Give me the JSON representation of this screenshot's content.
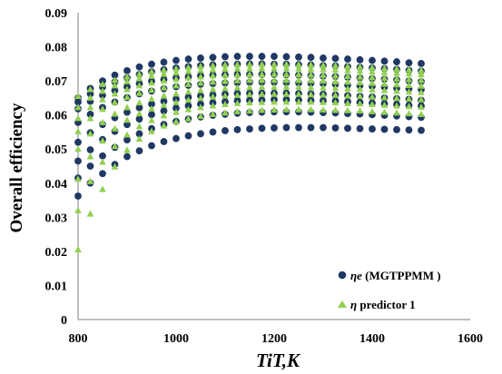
{
  "chart_data": {
    "type": "scatter",
    "xlabel": "TiT,K",
    "ylabel": "Overall efficiency",
    "xlim": [
      800,
      1600
    ],
    "ylim": [
      0,
      0.09
    ],
    "x_ticks": [
      "800",
      "1000",
      "1200",
      "1400",
      "1600"
    ],
    "y_ticks": [
      "0",
      "0.01",
      "0.02",
      "0.03",
      "0.04",
      "0.05",
      "0.06",
      "0.07",
      "0.08",
      "0.09"
    ],
    "grid": false,
    "legend_position": "bottom-right",
    "x": [
      800,
      825,
      850,
      875,
      900,
      925,
      950,
      975,
      1000,
      1025,
      1050,
      1075,
      1100,
      1125,
      1150,
      1175,
      1200,
      1225,
      1250,
      1275,
      1300,
      1325,
      1350,
      1375,
      1400,
      1425,
      1450,
      1475,
      1500
    ],
    "series": [
      {
        "name": "ηe (MGTPPMM )",
        "name_prefix": "ηe",
        "name_suffix": " (MGTPPMM )",
        "color": "#1f3864",
        "marker": "circle",
        "curves": [
          [
            0.0362,
            0.04,
            0.0428,
            0.0455,
            0.0478,
            0.0495,
            0.051,
            0.0522,
            0.0531,
            0.0539,
            0.0545,
            0.055,
            0.0554,
            0.0557,
            0.0559,
            0.0561,
            0.0562,
            0.0563,
            0.0563,
            0.0563,
            0.0563,
            0.0562,
            0.0561,
            0.056,
            0.0559,
            0.0558,
            0.0557,
            0.0556,
            0.0555
          ],
          [
            0.0415,
            0.045,
            0.048,
            0.0505,
            0.0527,
            0.0545,
            0.056,
            0.0572,
            0.0581,
            0.0588,
            0.0594,
            0.0599,
            0.0602,
            0.0605,
            0.0607,
            0.0608,
            0.0609,
            0.0609,
            0.0609,
            0.0608,
            0.0607,
            0.0606,
            0.0604,
            0.0603,
            0.0601,
            0.0599,
            0.0597,
            0.0595,
            0.0593
          ],
          [
            0.0465,
            0.0498,
            0.0528,
            0.0552,
            0.0572,
            0.0588,
            0.0601,
            0.0612,
            0.062,
            0.0627,
            0.0632,
            0.0636,
            0.0639,
            0.0642,
            0.0643,
            0.0644,
            0.0645,
            0.0645,
            0.0644,
            0.0643,
            0.0642,
            0.0641,
            0.0639,
            0.0637,
            0.0635,
            0.0633,
            0.0631,
            0.0628,
            0.0626
          ],
          [
            0.052,
            0.0548,
            0.0572,
            0.0592,
            0.0608,
            0.0621,
            0.0632,
            0.064,
            0.0647,
            0.0652,
            0.0656,
            0.0659,
            0.0661,
            0.0663,
            0.0664,
            0.0664,
            0.0664,
            0.0664,
            0.0663,
            0.0662,
            0.0661,
            0.0659,
            0.0657,
            0.0655,
            0.0653,
            0.065,
            0.0648,
            0.0646,
            0.0643
          ],
          [
            0.0578,
            0.0602,
            0.0622,
            0.0638,
            0.0651,
            0.0662,
            0.067,
            0.0677,
            0.0683,
            0.0687,
            0.069,
            0.0692,
            0.0694,
            0.0695,
            0.0696,
            0.0696,
            0.0696,
            0.0695,
            0.0694,
            0.0693,
            0.0692,
            0.069,
            0.0688,
            0.0686,
            0.0684,
            0.0682,
            0.0679,
            0.0677,
            0.0675
          ],
          [
            0.0618,
            0.064,
            0.0658,
            0.0672,
            0.0683,
            0.0692,
            0.0699,
            0.0704,
            0.0709,
            0.0712,
            0.0715,
            0.0717,
            0.0718,
            0.0719,
            0.0719,
            0.0719,
            0.0719,
            0.0718,
            0.0717,
            0.0716,
            0.0714,
            0.0713,
            0.0711,
            0.0709,
            0.0707,
            0.0705,
            0.0703,
            0.07,
            0.0698
          ],
          [
            0.0638,
            0.0662,
            0.0682,
            0.0697,
            0.0709,
            0.0719,
            0.0727,
            0.0733,
            0.0738,
            0.0742,
            0.0745,
            0.0747,
            0.0748,
            0.0749,
            0.075,
            0.075,
            0.0749,
            0.0749,
            0.0748,
            0.0747,
            0.0745,
            0.0744,
            0.0742,
            0.074,
            0.0738,
            0.0736,
            0.0734,
            0.0731,
            0.0729
          ],
          [
            0.065,
            0.0678,
            0.07,
            0.0717,
            0.073,
            0.0741,
            0.0749,
            0.0755,
            0.076,
            0.0764,
            0.0767,
            0.0769,
            0.0771,
            0.0772,
            0.0772,
            0.0772,
            0.0772,
            0.0771,
            0.077,
            0.0769,
            0.0767,
            0.0766,
            0.0764,
            0.0762,
            0.076,
            0.0758,
            0.0756,
            0.0753,
            0.0751
          ]
        ]
      },
      {
        "name": "η predictor 1",
        "name_prefix": "η",
        "name_suffix": " predictor 1",
        "color": "#92d050",
        "marker": "triangle",
        "curves": [
          [
            0.0205,
            0.031,
            0.0382,
            0.0448,
            0.0497,
            0.053,
            0.0552,
            0.0568,
            0.058,
            0.0589,
            0.0596,
            0.0602,
            0.0606,
            0.061,
            0.0612,
            0.0614,
            0.0615,
            0.0616,
            0.0616,
            0.0616,
            0.0615,
            0.0614,
            0.0613,
            0.0612,
            0.061,
            0.0608,
            0.0606,
            0.0604,
            0.0602
          ],
          [
            0.032,
            0.0405,
            0.0462,
            0.0508,
            0.0542,
            0.0566,
            0.0584,
            0.0598,
            0.0608,
            0.0616,
            0.0622,
            0.0627,
            0.0631,
            0.0634,
            0.0636,
            0.0637,
            0.0638,
            0.0638,
            0.0638,
            0.0638,
            0.0637,
            0.0636,
            0.0634,
            0.0633,
            0.0631,
            0.0629,
            0.0627,
            0.0625,
            0.0623
          ],
          [
            0.0412,
            0.0478,
            0.0524,
            0.056,
            0.0585,
            0.0604,
            0.0618,
            0.0629,
            0.0637,
            0.0644,
            0.0649,
            0.0653,
            0.0656,
            0.0658,
            0.066,
            0.0661,
            0.0661,
            0.0661,
            0.0661,
            0.066,
            0.0659,
            0.0658,
            0.0656,
            0.0655,
            0.0653,
            0.0651,
            0.0649,
            0.0647,
            0.0645
          ],
          [
            0.05,
            0.0545,
            0.0578,
            0.0603,
            0.0622,
            0.0636,
            0.0647,
            0.0656,
            0.0662,
            0.0668,
            0.0672,
            0.0675,
            0.0678,
            0.068,
            0.0681,
            0.0682,
            0.0682,
            0.0682,
            0.0682,
            0.0681,
            0.068,
            0.0679,
            0.0677,
            0.0676,
            0.0674,
            0.0672,
            0.067,
            0.0668,
            0.0666
          ],
          [
            0.0552,
            0.059,
            0.0617,
            0.0637,
            0.0652,
            0.0664,
            0.0673,
            0.068,
            0.0686,
            0.069,
            0.0694,
            0.0697,
            0.0699,
            0.0701,
            0.0702,
            0.0702,
            0.0702,
            0.0702,
            0.0702,
            0.0701,
            0.07,
            0.0698,
            0.0697,
            0.0695,
            0.0693,
            0.0691,
            0.0689,
            0.0687,
            0.0685
          ],
          [
            0.059,
            0.0622,
            0.0645,
            0.0662,
            0.0675,
            0.0686,
            0.0694,
            0.07,
            0.0705,
            0.0709,
            0.0712,
            0.0715,
            0.0717,
            0.0718,
            0.0719,
            0.0719,
            0.072,
            0.0719,
            0.0719,
            0.0718,
            0.0717,
            0.0715,
            0.0714,
            0.0712,
            0.071,
            0.0708,
            0.0706,
            0.0704,
            0.0702
          ],
          [
            0.0622,
            0.065,
            0.067,
            0.0686,
            0.0698,
            0.0707,
            0.0714,
            0.072,
            0.0724,
            0.0728,
            0.0731,
            0.0733,
            0.0735,
            0.0736,
            0.0737,
            0.0737,
            0.0737,
            0.0737,
            0.0736,
            0.0735,
            0.0734,
            0.0733,
            0.0731,
            0.0729,
            0.0727,
            0.0725,
            0.0723,
            0.0721,
            0.0719
          ],
          [
            0.0655,
            0.0675,
            0.069,
            0.0702,
            0.0712,
            0.072,
            0.0727,
            0.0732,
            0.0736,
            0.074,
            0.0743,
            0.0745,
            0.0747,
            0.0748,
            0.0749,
            0.0749,
            0.0749,
            0.0749,
            0.0748,
            0.0747,
            0.0746,
            0.0745,
            0.0743,
            0.0741,
            0.0739,
            0.0737,
            0.0735,
            0.0733,
            0.0731
          ]
        ]
      }
    ]
  }
}
